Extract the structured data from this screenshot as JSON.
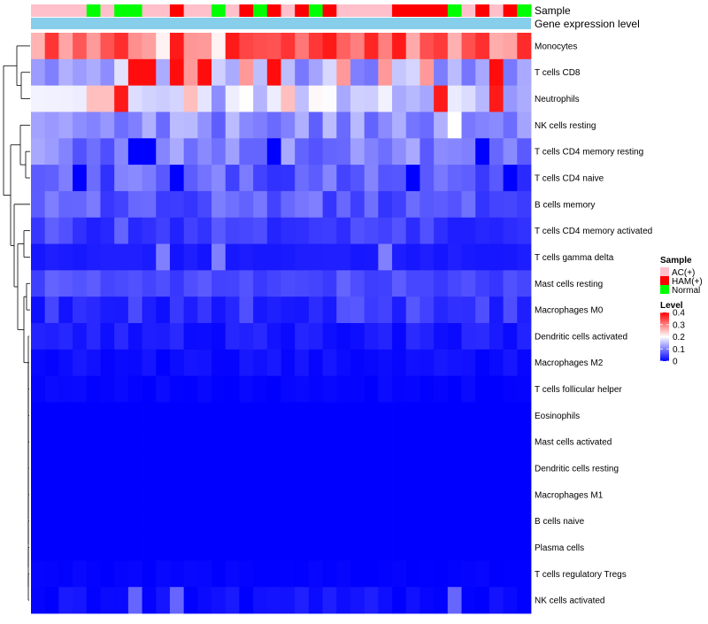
{
  "chart_data": {
    "type": "heatmap",
    "title": "",
    "annotation_tracks": [
      {
        "name": "Sample",
        "label": "Sample"
      },
      {
        "name": "Gene expression level",
        "label": "Gene expression level"
      }
    ],
    "n_samples": 36,
    "sample_groups": [
      "AC(+)",
      "AC(+)",
      "AC(+)",
      "AC(+)",
      "Normal",
      "AC(+)",
      "Normal",
      "Normal",
      "AC(+)",
      "AC(+)",
      "HAM(+)",
      "AC(+)",
      "AC(+)",
      "Normal",
      "AC(+)",
      "HAM(+)",
      "Normal",
      "HAM(+)",
      "AC(+)",
      "HAM(+)",
      "Normal",
      "HAM(+)",
      "AC(+)",
      "AC(+)",
      "AC(+)",
      "AC(+)",
      "HAM(+)",
      "HAM(+)",
      "HAM(+)",
      "HAM(+)",
      "Normal",
      "AC(+)",
      "HAM(+)",
      "AC(+)",
      "HAM(+)",
      "Normal"
    ],
    "gene_expression_level_color": "#87CEEB",
    "group_colors": {
      "AC(+)": "#FFC0CB",
      "HAM(+)": "#FF0000",
      "Normal": "#00FF00"
    },
    "rows": [
      "Monocytes",
      "T cells CD8",
      "Neutrophils",
      "NK cells resting",
      "T cells CD4 memory resting",
      "T cells CD4 naive",
      "B cells memory",
      "T cells CD4 memory activated",
      "T cells gamma delta",
      "Mast cells resting",
      "Macrophages M0",
      "Dendritic cells activated",
      "Macrophages M2",
      "T cells follicular helper",
      "Eosinophils",
      "Mast cells activated",
      "Dendritic cells resting",
      "Macrophages M1",
      "B cells naive",
      "Plasma cells",
      "T cells regulatory  Tregs",
      "NK cells activated"
    ],
    "row_levels": [
      0.32,
      0.14,
      0.16,
      0.11,
      0.1,
      0.07,
      0.07,
      0.05,
      0.02,
      0.06,
      0.04,
      0.02,
      0.01,
      0.004,
      0.0,
      0.0,
      0.0,
      0.0,
      0.0,
      0.0,
      0.002,
      0.01
    ],
    "highlights": [
      {
        "row": "Monocytes",
        "cols": [
          10,
          14,
          21,
          26
        ],
        "value": 0.38
      },
      {
        "row": "Monocytes",
        "cols": [
          9,
          13
        ],
        "value": 0.21
      },
      {
        "row": "T cells CD8",
        "cols": [
          7,
          8,
          10,
          12,
          17,
          33
        ],
        "value": 0.39
      },
      {
        "row": "T cells CD8",
        "cols": [
          11,
          15,
          22,
          25,
          28
        ],
        "value": 0.28
      },
      {
        "row": "Neutrophils",
        "cols": [
          6,
          29,
          33
        ],
        "value": 0.38
      },
      {
        "row": "Neutrophils",
        "cols": [
          4,
          5,
          11,
          18
        ],
        "value": 0.25
      },
      {
        "row": "NK cells resting",
        "cols": [
          30
        ],
        "value": 0.2
      },
      {
        "row": "T cells CD4 memory resting",
        "cols": [
          7,
          8,
          17,
          32
        ],
        "value": 0.0
      },
      {
        "row": "T cells CD4 naive",
        "cols": [
          3,
          10,
          27,
          34
        ],
        "value": 0.0
      },
      {
        "row": "T cells gamma delta",
        "cols": [
          9,
          13,
          25
        ],
        "value": 0.1
      },
      {
        "row": "NK cells activated",
        "cols": [
          7,
          10,
          30
        ],
        "value": 0.08
      }
    ],
    "legend": {
      "sample_title": "Sample",
      "sample_entries": [
        "AC(+)",
        "HAM(+)",
        "Normal"
      ],
      "level_title": "Level",
      "level_ticks": [
        "0.4",
        "0.3",
        "0.2",
        "0.1",
        "0"
      ],
      "level_range": [
        0,
        0.4
      ],
      "colors": {
        "low": "#0000FF",
        "mid": "#FFFFFF",
        "high": "#FF0000"
      }
    }
  }
}
